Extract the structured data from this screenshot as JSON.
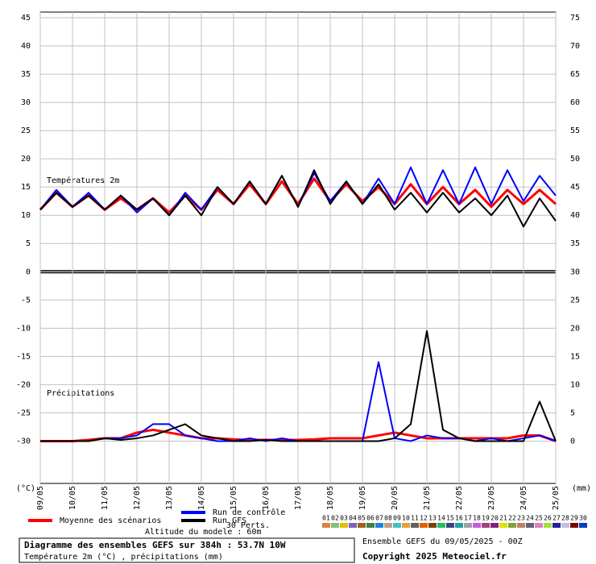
{
  "chart_data": {
    "type": "line",
    "title": "Diagramme des ensembles GEFS sur 384h : 53.7N 10W",
    "subtitle": "Température 2m (°C) , précipitations (mm)",
    "run_label": "Ensemble GEFS du 09/05/2025 - 00Z",
    "copyright": "Copyright 2025 Meteociel.fr",
    "altitude": "Altitude du modele : 60m",
    "ylabel": "(°C)",
    "y2label": "(mm)",
    "annotations": [
      "Températures 2m",
      "Précipitations"
    ],
    "perts_label": "30 Perts.",
    "grid": true,
    "xlim": [
      0,
      384
    ],
    "xticks": [
      {
        "value": 0,
        "label": "09/05"
      },
      {
        "value": 24,
        "label": "10/05"
      },
      {
        "value": 48,
        "label": "11/05"
      },
      {
        "value": 72,
        "label": "12/05"
      },
      {
        "value": 96,
        "label": "13/05"
      },
      {
        "value": 120,
        "label": "14/05"
      },
      {
        "value": 144,
        "label": "15/05"
      },
      {
        "value": 168,
        "label": "16/05"
      },
      {
        "value": 192,
        "label": "17/05"
      },
      {
        "value": 216,
        "label": "18/05"
      },
      {
        "value": 240,
        "label": "19/05"
      },
      {
        "value": 264,
        "label": "20/05"
      },
      {
        "value": 288,
        "label": "21/05"
      },
      {
        "value": 312,
        "label": "22/05"
      },
      {
        "value": 336,
        "label": "23/05"
      },
      {
        "value": 360,
        "label": "24/05"
      },
      {
        "value": 384,
        "label": "25/05"
      }
    ],
    "ylim": [
      -37.5,
      46
    ],
    "yticks": [
      45,
      40,
      35,
      30,
      25,
      20,
      15,
      10,
      5,
      0,
      -5,
      -10,
      -15,
      -20,
      -25,
      -30
    ],
    "y2lim": [
      -7.5,
      76
    ],
    "y2ticks": [
      75,
      70,
      65,
      60,
      55,
      50,
      45,
      40,
      35,
      30,
      25,
      20,
      15,
      10,
      5,
      0
    ],
    "x": [
      0,
      12,
      24,
      36,
      48,
      60,
      72,
      84,
      96,
      108,
      120,
      132,
      144,
      156,
      168,
      180,
      192,
      204,
      216,
      228,
      240,
      252,
      264,
      276,
      288,
      300,
      312,
      324,
      336,
      348,
      360,
      372,
      384
    ],
    "series": [
      {
        "name": "Moyenne des scénarios",
        "color": "#ff0000",
        "values": [
          11,
          14,
          11.5,
          13.5,
          11,
          13,
          11,
          13,
          10.5,
          13.5,
          11,
          14.5,
          12,
          15.5,
          12,
          16,
          12,
          16.5,
          12.5,
          15.5,
          12.5,
          15,
          12,
          15.5,
          12,
          15,
          12,
          14.5,
          11.5,
          14.5,
          12,
          14.5,
          12
        ],
        "y2_values": [
          0,
          0,
          0,
          0.2,
          0.5,
          0.5,
          1.5,
          2,
          1.5,
          1,
          0.5,
          0.5,
          0.3,
          0.2,
          0.2,
          0.2,
          0.2,
          0.3,
          0.5,
          0.5,
          0.5,
          1,
          1.5,
          1,
          0.5,
          0.5,
          0.5,
          0.5,
          0.5,
          0.5,
          1,
          1,
          0
        ]
      },
      {
        "name": "Run de contrôle",
        "color": "#0000ff",
        "values": [
          11,
          14.5,
          11.5,
          14,
          11,
          13.5,
          10.5,
          13,
          10,
          14,
          11,
          15,
          12,
          16,
          12,
          17,
          11.5,
          17.5,
          12.5,
          16,
          12,
          16.5,
          12,
          18.5,
          12,
          18,
          12,
          18.5,
          12,
          18,
          12.5,
          17,
          13.5
        ],
        "y2_values": [
          0,
          0,
          0,
          0,
          0.5,
          0.5,
          1,
          3,
          3,
          1,
          0.5,
          0,
          0,
          0.5,
          0,
          0.5,
          0,
          0,
          0,
          0,
          0,
          14,
          0.5,
          0,
          1,
          0.5,
          0.5,
          0,
          0.5,
          0,
          0.5,
          1,
          0
        ]
      },
      {
        "name": "Run GFS",
        "color": "#000000",
        "values": [
          11,
          14,
          11.5,
          13.5,
          11,
          13.5,
          11,
          13,
          10,
          13.5,
          10,
          15,
          12,
          16,
          12,
          17,
          11.5,
          18,
          12,
          16,
          12,
          15.5,
          11,
          14,
          10.5,
          14,
          10.5,
          13,
          10,
          13.5,
          8,
          13,
          9
        ],
        "y2_values": [
          0,
          0,
          0,
          0,
          0.5,
          0.2,
          0.5,
          1,
          2,
          3,
          1,
          0.5,
          0,
          0,
          0.2,
          0,
          0,
          0,
          0,
          0,
          0,
          0,
          0.5,
          3,
          19.5,
          2,
          0.5,
          0,
          0,
          0,
          0,
          7,
          0
        ]
      }
    ],
    "perturbations": [
      {
        "name": "01",
        "color": "#e08040"
      },
      {
        "name": "02",
        "color": "#80c080"
      },
      {
        "name": "03",
        "color": "#e0c000"
      },
      {
        "name": "04",
        "color": "#8060c0"
      },
      {
        "name": "05",
        "color": "#a06020"
      },
      {
        "name": "06",
        "color": "#408040"
      },
      {
        "name": "07",
        "color": "#2080e0"
      },
      {
        "name": "08",
        "color": "#c0a080"
      },
      {
        "name": "09",
        "color": "#40c0c0"
      },
      {
        "name": "10",
        "color": "#e0a040"
      },
      {
        "name": "11",
        "color": "#606060"
      },
      {
        "name": "12",
        "color": "#e06000"
      },
      {
        "name": "13",
        "color": "#804000"
      },
      {
        "name": "14",
        "color": "#20c060"
      },
      {
        "name": "15",
        "color": "#404080"
      },
      {
        "name": "16",
        "color": "#20a0a0"
      },
      {
        "name": "17",
        "color": "#a0a0a0"
      },
      {
        "name": "18",
        "color": "#c060e0"
      },
      {
        "name": "19",
        "color": "#a04080"
      },
      {
        "name": "20",
        "color": "#802080"
      },
      {
        "name": "21",
        "color": "#e0e000"
      },
      {
        "name": "22",
        "color": "#80a040"
      },
      {
        "name": "23",
        "color": "#c08060"
      },
      {
        "name": "24",
        "color": "#606080"
      },
      {
        "name": "25",
        "color": "#e080c0"
      },
      {
        "name": "26",
        "color": "#a0e040"
      },
      {
        "name": "27",
        "color": "#2020a0"
      },
      {
        "name": "28",
        "color": "#c0c0e0"
      },
      {
        "name": "29",
        "color": "#800000"
      },
      {
        "name": "30",
        "color": "#0040c0"
      }
    ]
  }
}
